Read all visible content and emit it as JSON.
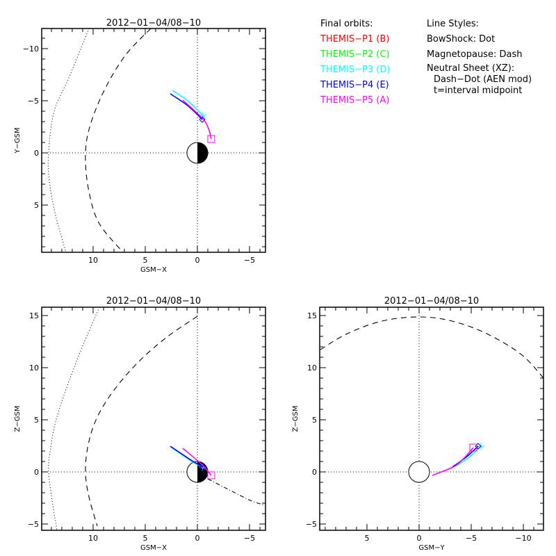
{
  "colors": {
    "P1": "#ff0000",
    "P2": "#00ff00",
    "P3": "#00ffff",
    "P4": "#0000ff",
    "P5": "#ff00ff",
    "axes": "#000000"
  },
  "legend": {
    "orbits_title": "Final orbits:",
    "probes": [
      {
        "label": "THEMIS-P1 (B)",
        "color": "#ff0000"
      },
      {
        "label": "THEMIS-P2 (C)",
        "color": "#00ff00"
      },
      {
        "label": "THEMIS-P3 (D)",
        "color": "#00ffff"
      },
      {
        "label": "THEMIS-P4 (E)",
        "color": "#0000ff"
      },
      {
        "label": "THEMIS-P5 (A)",
        "color": "#ff00ff"
      }
    ],
    "styles_title": "Line Styles:",
    "styles": [
      "BowShock: Dot",
      "Magnetopause: Dash",
      "Neutral Sheet (XZ):"
    ],
    "styles_sub": [
      "Dash-Dot (AEN mod)",
      "t=interval midpoint"
    ]
  },
  "chart_data": [
    {
      "type": "line",
      "id": "xy",
      "title": "2012-01-04/08-10",
      "xlabel": "GSM-X",
      "ylabel": "Y-GSM",
      "xlim": [
        14.93,
        -6.53
      ],
      "ylim": [
        -11.93,
        9.53
      ],
      "xticks": [
        10,
        5,
        0,
        -5
      ],
      "yticks": [
        -10,
        -5,
        0,
        5
      ],
      "xtick_labels": [
        "10",
        "5",
        "0",
        "-5"
      ],
      "ytick_labels": [
        "-10",
        "-5",
        "0",
        "5"
      ],
      "earth": "half-shaded",
      "series": [
        {
          "name": "BowShock",
          "style": "dot",
          "color": "#000000",
          "x": [
            10.4,
            12.27,
            13.73,
            14.27,
            14.2,
            13.6,
            12.6
          ],
          "y": [
            -11.93,
            -7.33,
            -4.0,
            0.0,
            2.67,
            6.0,
            9.53
          ]
        },
        {
          "name": "Magnetopause",
          "style": "dash",
          "color": "#000000",
          "x": [
            4.47,
            6.93,
            8.93,
            10.27,
            10.73,
            10.47,
            9.47,
            7.13
          ],
          "y": [
            -11.93,
            -9.33,
            -6.0,
            -2.67,
            0.0,
            3.33,
            6.67,
            9.53
          ]
        },
        {
          "name": "THEMIS-P3 (D)",
          "style": "solid",
          "color": "#00ffff",
          "marker": "asterisk",
          "x": [
            2.4,
            0.93,
            -0.53
          ],
          "y": [
            -6.0,
            -5.0,
            -3.6
          ]
        },
        {
          "name": "THEMIS-P4 (E)",
          "style": "solid",
          "color": "#0000ff",
          "marker": "diamond",
          "x": [
            2.6,
            0.93,
            -0.47
          ],
          "y": [
            -5.67,
            -4.53,
            -3.2
          ]
        },
        {
          "name": "THEMIS-P5 (A)",
          "style": "solid",
          "color": "#ff00ff",
          "marker": "square",
          "x": [
            1.4,
            -0.47,
            -1.07,
            -1.33
          ],
          "y": [
            -5.07,
            -3.33,
            -2.33,
            -1.33
          ]
        }
      ]
    },
    {
      "type": "line",
      "id": "xz",
      "title": "2012-01-04/08-10",
      "xlabel": "GSM-X",
      "ylabel": "Z-GSM",
      "xlim": [
        14.93,
        -6.53
      ],
      "ylim": [
        15.8,
        -5.6
      ],
      "xticks": [
        10,
        5,
        0,
        -5
      ],
      "yticks": [
        15,
        10,
        5,
        0,
        -5
      ],
      "xtick_labels": [
        "10",
        "5",
        "0",
        "-5"
      ],
      "ytick_labels": [
        "15",
        "10",
        "5",
        "0",
        "-5"
      ],
      "earth": "half-shaded",
      "series": [
        {
          "name": "BowShock",
          "style": "dot",
          "color": "#000000",
          "x": [
            9.4,
            11.6,
            13.47,
            14.13,
            14.27,
            13.93,
            13.47
          ],
          "y": [
            15.8,
            10.6,
            5.27,
            1.93,
            0.0,
            -2.73,
            -5.6
          ]
        },
        {
          "name": "Magnetopause",
          "style": "dash",
          "color": "#000000",
          "x": [
            0.0,
            2.93,
            5.6,
            7.93,
            9.6,
            10.47,
            10.73,
            10.4,
            9.6
          ],
          "y": [
            14.93,
            12.93,
            10.6,
            7.93,
            5.27,
            2.6,
            0.0,
            -2.4,
            -5.2
          ]
        },
        {
          "name": "Neutral Sheet",
          "style": "dashdot",
          "color": "#000000",
          "x": [
            -1.0,
            -3.07,
            -5.07,
            -6.47
          ],
          "y": [
            -0.67,
            -1.73,
            -2.73,
            -3.2
          ]
        },
        {
          "name": "THEMIS-P3 (D)",
          "style": "solid",
          "color": "#00ffff",
          "marker": "asterisk",
          "x": [
            2.5,
            0.6,
            -0.5
          ],
          "y": [
            2.35,
            1.05,
            0.45
          ]
        },
        {
          "name": "THEMIS-P4 (E)",
          "style": "solid",
          "color": "#0000ff",
          "marker": "diamond",
          "x": [
            2.6,
            0.6,
            -0.53
          ],
          "y": [
            2.47,
            1.13,
            0.47
          ]
        },
        {
          "name": "THEMIS-P5 (A)",
          "style": "solid",
          "color": "#ff00ff",
          "marker": "square",
          "x": [
            1.4,
            -0.4,
            -1.33
          ],
          "y": [
            2.27,
            0.73,
            -0.33
          ]
        }
      ]
    },
    {
      "type": "line",
      "id": "yz",
      "title": "2012-01-04/08-10",
      "xlabel": "GSM-Y",
      "ylabel": "Z-GSM",
      "xlim": [
        9.53,
        -11.93
      ],
      "ylim": [
        15.8,
        -5.6
      ],
      "xticks": [
        5,
        0,
        -5,
        -10
      ],
      "yticks": [
        15,
        10,
        5,
        0,
        -5
      ],
      "xtick_labels": [
        "5",
        "0",
        "-5",
        "-10"
      ],
      "ytick_labels": [
        "15",
        "10",
        "5",
        "0",
        "-5"
      ],
      "earth": "open",
      "series": [
        {
          "name": "Magnetopause",
          "style": "dash",
          "color": "#000000",
          "x": [
            9.47,
            6.87,
            3.53,
            0.0,
            -3.13,
            -6.47,
            -9.8,
            -12.0
          ],
          "y": [
            11.73,
            13.27,
            14.47,
            14.87,
            14.47,
            13.27,
            11.27,
            8.93
          ]
        },
        {
          "name": "THEMIS-P3 (D)",
          "style": "solid",
          "color": "#00ffff",
          "marker": "asterisk",
          "x": [
            -3.47,
            -4.8,
            -5.93
          ],
          "y": [
            0.53,
            1.4,
            2.47
          ]
        },
        {
          "name": "THEMIS-P4 (E)",
          "style": "solid",
          "color": "#0000ff",
          "marker": "diamond",
          "x": [
            -3.2,
            -4.5,
            -5.67
          ],
          "y": [
            0.47,
            1.4,
            2.47
          ]
        },
        {
          "name": "THEMIS-P5 (A)",
          "style": "solid",
          "color": "#ff00ff",
          "marker": "square",
          "x": [
            -1.27,
            -3.27,
            -4.3,
            -5.2
          ],
          "y": [
            -0.33,
            0.47,
            1.3,
            2.33
          ]
        }
      ]
    }
  ]
}
